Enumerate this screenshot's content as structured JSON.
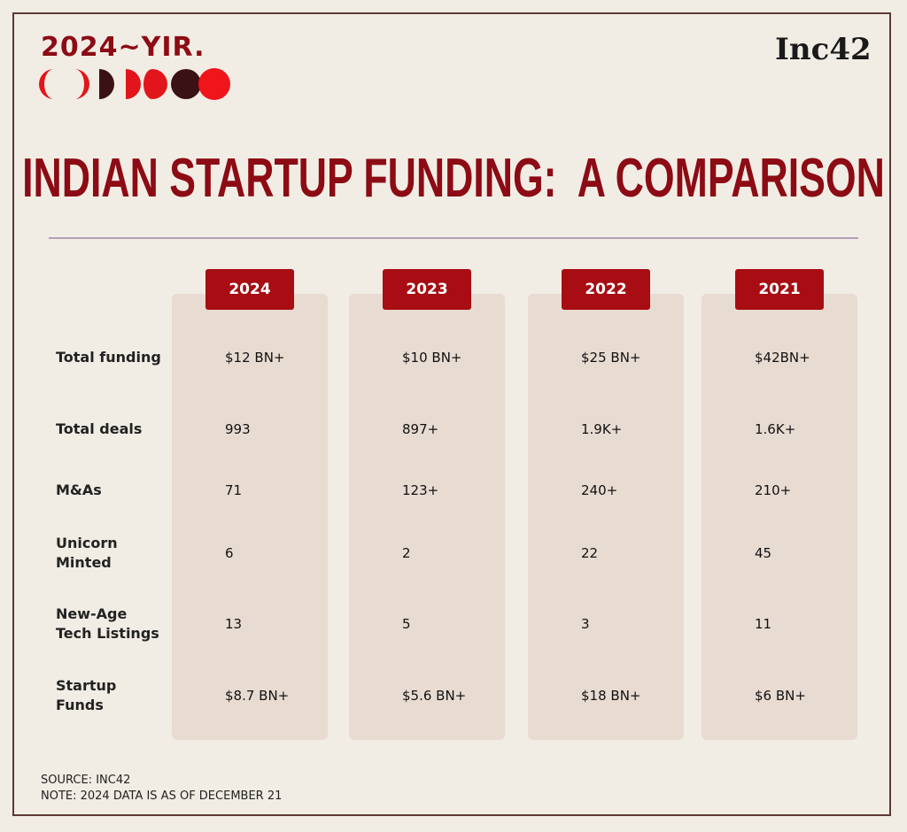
{
  "header": {
    "badge": "2024~YIR.",
    "logo": "Inc42",
    "title": "INDIAN STARTUP FUNDING:  A COMPARISON"
  },
  "table": {
    "columns": [
      "2024",
      "2023",
      "2022",
      "2021"
    ],
    "rows": [
      {
        "label": "Total funding",
        "cells": [
          "$12 BN+",
          "$10 BN+",
          "$25 BN+",
          "$42BN+"
        ]
      },
      {
        "label": "Total deals",
        "cells": [
          "993",
          "897+",
          "1.9K+",
          "1.6K+"
        ]
      },
      {
        "label": "M&As",
        "cells": [
          "71",
          "123+",
          "240+",
          "210+"
        ]
      },
      {
        "label": "Unicorn Minted",
        "cells": [
          "6",
          "2",
          "22",
          "45"
        ]
      },
      {
        "label": "New-Age Tech Listings",
        "cells": [
          "13",
          "5",
          "3",
          "11"
        ]
      },
      {
        "label": "Startup Funds",
        "cells": [
          "$8.7 BN+",
          "$5.6 BN+",
          "$18 BN+",
          "$6 BN+"
        ]
      }
    ]
  },
  "footer": {
    "source": "SOURCE: INC42",
    "note": "NOTE: 2024 DATA IS AS OF DECEMBER 21"
  }
}
